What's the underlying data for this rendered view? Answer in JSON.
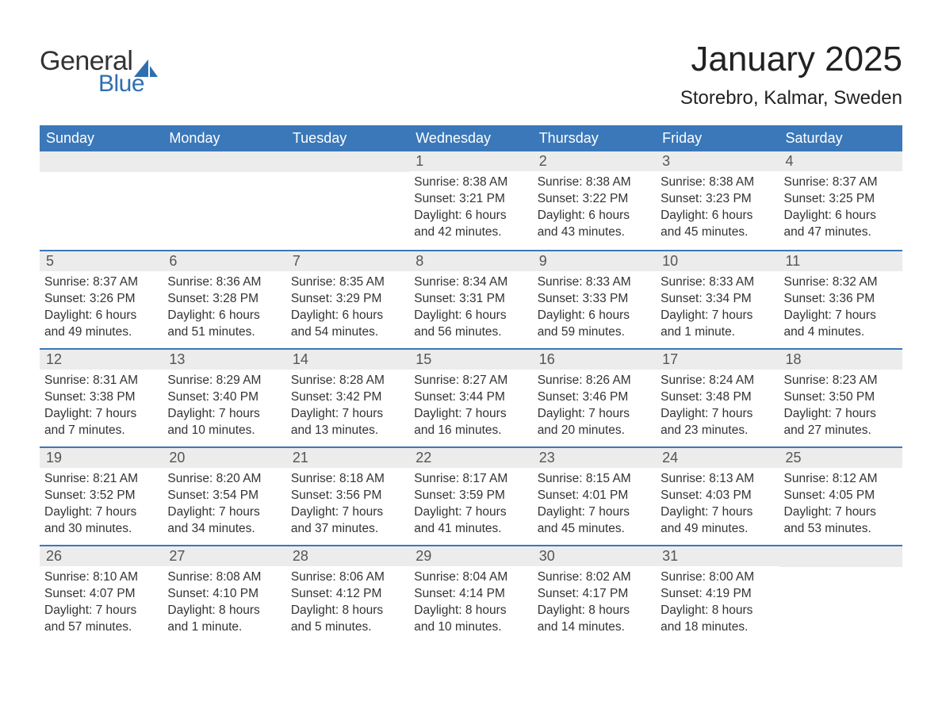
{
  "logo": {
    "part1": "General",
    "part2": "Blue"
  },
  "title": "January 2025",
  "location": "Storebro, Kalmar, Sweden",
  "colors": {
    "header_bg": "#3a78b9",
    "header_text": "#ffffff",
    "daynum_bg": "#ececec",
    "daynum_text": "#555555",
    "body_text": "#333333",
    "border": "#3a78b9",
    "logo_dark": "#333333",
    "logo_blue": "#2f6fb0",
    "page_bg": "#ffffff"
  },
  "weekdays": [
    "Sunday",
    "Monday",
    "Tuesday",
    "Wednesday",
    "Thursday",
    "Friday",
    "Saturday"
  ],
  "weeks": [
    [
      null,
      null,
      null,
      {
        "n": "1",
        "sunrise": "8:38 AM",
        "sunset": "3:21 PM",
        "dl1": "Daylight: 6 hours",
        "dl2": "and 42 minutes."
      },
      {
        "n": "2",
        "sunrise": "8:38 AM",
        "sunset": "3:22 PM",
        "dl1": "Daylight: 6 hours",
        "dl2": "and 43 minutes."
      },
      {
        "n": "3",
        "sunrise": "8:38 AM",
        "sunset": "3:23 PM",
        "dl1": "Daylight: 6 hours",
        "dl2": "and 45 minutes."
      },
      {
        "n": "4",
        "sunrise": "8:37 AM",
        "sunset": "3:25 PM",
        "dl1": "Daylight: 6 hours",
        "dl2": "and 47 minutes."
      }
    ],
    [
      {
        "n": "5",
        "sunrise": "8:37 AM",
        "sunset": "3:26 PM",
        "dl1": "Daylight: 6 hours",
        "dl2": "and 49 minutes."
      },
      {
        "n": "6",
        "sunrise": "8:36 AM",
        "sunset": "3:28 PM",
        "dl1": "Daylight: 6 hours",
        "dl2": "and 51 minutes."
      },
      {
        "n": "7",
        "sunrise": "8:35 AM",
        "sunset": "3:29 PM",
        "dl1": "Daylight: 6 hours",
        "dl2": "and 54 minutes."
      },
      {
        "n": "8",
        "sunrise": "8:34 AM",
        "sunset": "3:31 PM",
        "dl1": "Daylight: 6 hours",
        "dl2": "and 56 minutes."
      },
      {
        "n": "9",
        "sunrise": "8:33 AM",
        "sunset": "3:33 PM",
        "dl1": "Daylight: 6 hours",
        "dl2": "and 59 minutes."
      },
      {
        "n": "10",
        "sunrise": "8:33 AM",
        "sunset": "3:34 PM",
        "dl1": "Daylight: 7 hours",
        "dl2": "and 1 minute."
      },
      {
        "n": "11",
        "sunrise": "8:32 AM",
        "sunset": "3:36 PM",
        "dl1": "Daylight: 7 hours",
        "dl2": "and 4 minutes."
      }
    ],
    [
      {
        "n": "12",
        "sunrise": "8:31 AM",
        "sunset": "3:38 PM",
        "dl1": "Daylight: 7 hours",
        "dl2": "and 7 minutes."
      },
      {
        "n": "13",
        "sunrise": "8:29 AM",
        "sunset": "3:40 PM",
        "dl1": "Daylight: 7 hours",
        "dl2": "and 10 minutes."
      },
      {
        "n": "14",
        "sunrise": "8:28 AM",
        "sunset": "3:42 PM",
        "dl1": "Daylight: 7 hours",
        "dl2": "and 13 minutes."
      },
      {
        "n": "15",
        "sunrise": "8:27 AM",
        "sunset": "3:44 PM",
        "dl1": "Daylight: 7 hours",
        "dl2": "and 16 minutes."
      },
      {
        "n": "16",
        "sunrise": "8:26 AM",
        "sunset": "3:46 PM",
        "dl1": "Daylight: 7 hours",
        "dl2": "and 20 minutes."
      },
      {
        "n": "17",
        "sunrise": "8:24 AM",
        "sunset": "3:48 PM",
        "dl1": "Daylight: 7 hours",
        "dl2": "and 23 minutes."
      },
      {
        "n": "18",
        "sunrise": "8:23 AM",
        "sunset": "3:50 PM",
        "dl1": "Daylight: 7 hours",
        "dl2": "and 27 minutes."
      }
    ],
    [
      {
        "n": "19",
        "sunrise": "8:21 AM",
        "sunset": "3:52 PM",
        "dl1": "Daylight: 7 hours",
        "dl2": "and 30 minutes."
      },
      {
        "n": "20",
        "sunrise": "8:20 AM",
        "sunset": "3:54 PM",
        "dl1": "Daylight: 7 hours",
        "dl2": "and 34 minutes."
      },
      {
        "n": "21",
        "sunrise": "8:18 AM",
        "sunset": "3:56 PM",
        "dl1": "Daylight: 7 hours",
        "dl2": "and 37 minutes."
      },
      {
        "n": "22",
        "sunrise": "8:17 AM",
        "sunset": "3:59 PM",
        "dl1": "Daylight: 7 hours",
        "dl2": "and 41 minutes."
      },
      {
        "n": "23",
        "sunrise": "8:15 AM",
        "sunset": "4:01 PM",
        "dl1": "Daylight: 7 hours",
        "dl2": "and 45 minutes."
      },
      {
        "n": "24",
        "sunrise": "8:13 AM",
        "sunset": "4:03 PM",
        "dl1": "Daylight: 7 hours",
        "dl2": "and 49 minutes."
      },
      {
        "n": "25",
        "sunrise": "8:12 AM",
        "sunset": "4:05 PM",
        "dl1": "Daylight: 7 hours",
        "dl2": "and 53 minutes."
      }
    ],
    [
      {
        "n": "26",
        "sunrise": "8:10 AM",
        "sunset": "4:07 PM",
        "dl1": "Daylight: 7 hours",
        "dl2": "and 57 minutes."
      },
      {
        "n": "27",
        "sunrise": "8:08 AM",
        "sunset": "4:10 PM",
        "dl1": "Daylight: 8 hours",
        "dl2": "and 1 minute."
      },
      {
        "n": "28",
        "sunrise": "8:06 AM",
        "sunset": "4:12 PM",
        "dl1": "Daylight: 8 hours",
        "dl2": "and 5 minutes."
      },
      {
        "n": "29",
        "sunrise": "8:04 AM",
        "sunset": "4:14 PM",
        "dl1": "Daylight: 8 hours",
        "dl2": "and 10 minutes."
      },
      {
        "n": "30",
        "sunrise": "8:02 AM",
        "sunset": "4:17 PM",
        "dl1": "Daylight: 8 hours",
        "dl2": "and 14 minutes."
      },
      {
        "n": "31",
        "sunrise": "8:00 AM",
        "sunset": "4:19 PM",
        "dl1": "Daylight: 8 hours",
        "dl2": "and 18 minutes."
      },
      null
    ]
  ],
  "labels": {
    "sunrise": "Sunrise: ",
    "sunset": "Sunset: "
  }
}
